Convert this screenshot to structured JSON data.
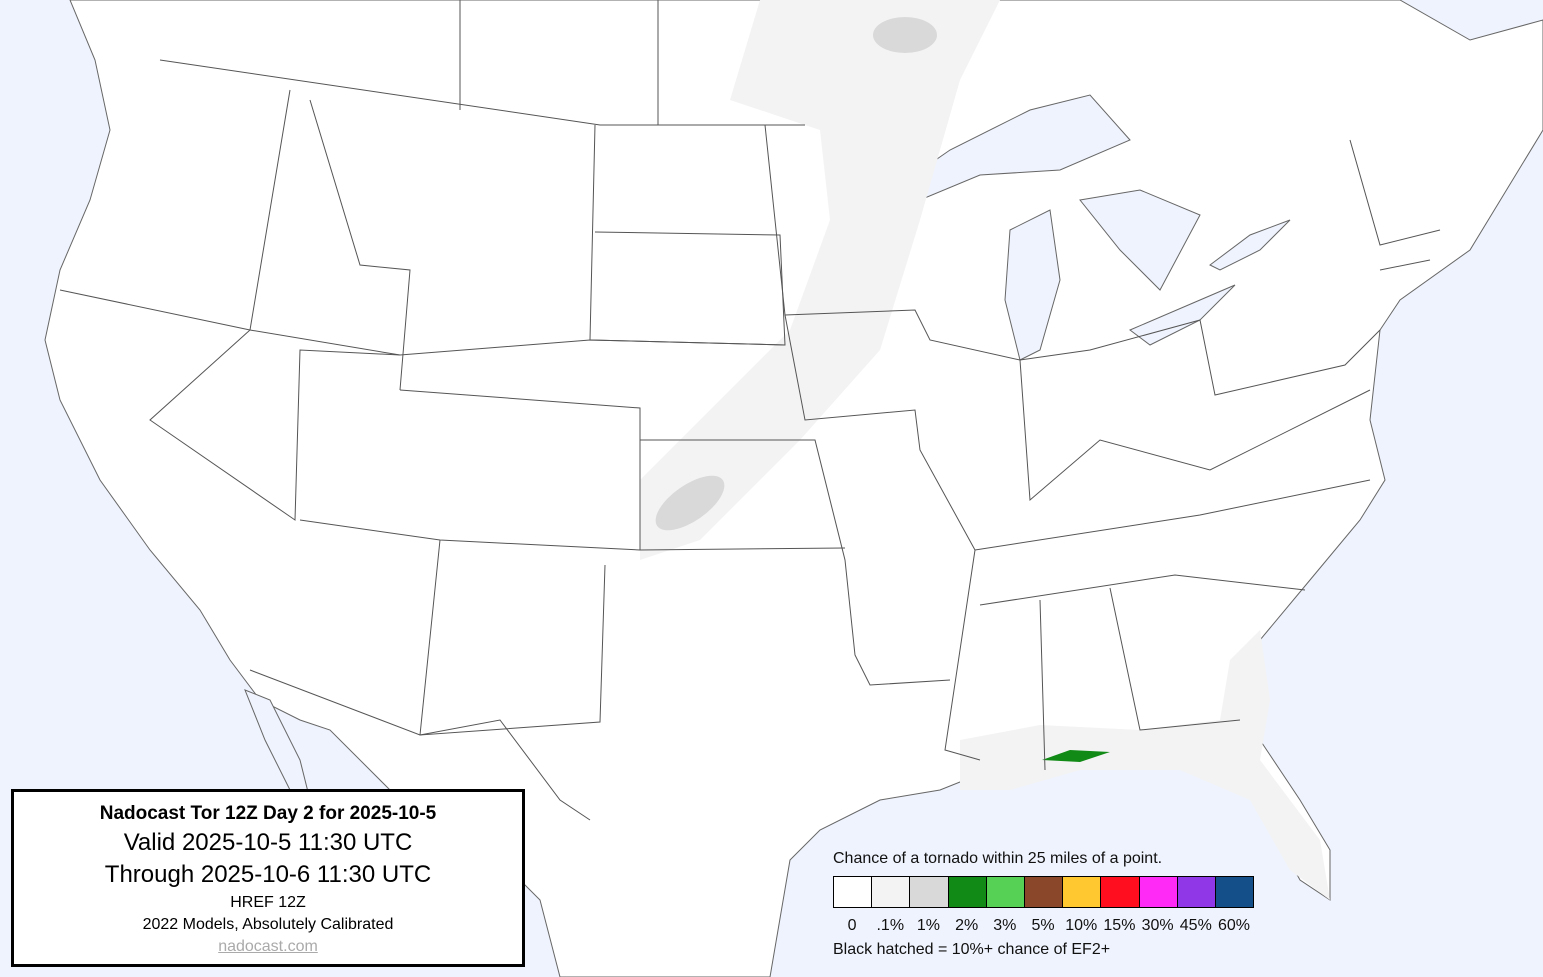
{
  "title_box": {
    "title": "Nadocast Tor 12Z Day 2 for 2025-10-5",
    "valid": "Valid 2025-10-5 11:30 UTC",
    "through": "Through 2025-10-6 11:30 UTC",
    "model": "HREF 12Z",
    "calibration": "2022 Models, Absolutely Calibrated",
    "link": "nadocast.com"
  },
  "legend": {
    "title": "Chance of a tornado within 25 miles of a point.",
    "note": "Black hatched = 10%+ chance of EF2+",
    "bins": [
      {
        "label": "0",
        "color": "#ffffff"
      },
      {
        "label": ".1%",
        "color": "#f3f3f3"
      },
      {
        "label": "1%",
        "color": "#d9d9d9"
      },
      {
        "label": "2%",
        "color": "#118a16"
      },
      {
        "label": "3%",
        "color": "#56d156"
      },
      {
        "label": "5%",
        "color": "#8a472a"
      },
      {
        "label": "10%",
        "color": "#ffc730"
      },
      {
        "label": "15%",
        "color": "#ff0e20"
      },
      {
        "label": "30%",
        "color": "#ff2af5"
      },
      {
        "label": "45%",
        "color": "#9038e8"
      },
      {
        "label": "60%",
        "color": "#144f8a"
      }
    ]
  },
  "colors": {
    "water": "#eff3fd",
    "land": "#ffffff",
    "borders": "#555555"
  }
}
